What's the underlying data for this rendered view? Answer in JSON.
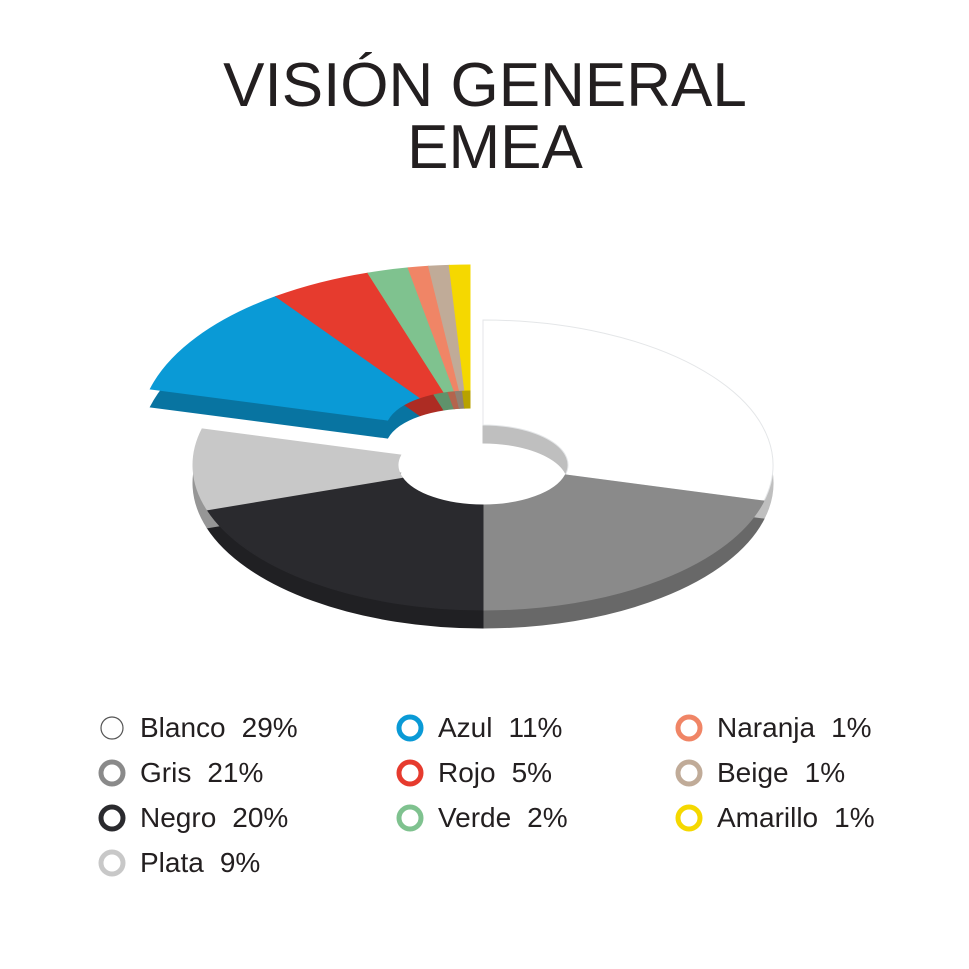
{
  "chart_data": {
    "type": "donut",
    "title": [
      "VISIÓN GENERAL",
      "EMEA"
    ],
    "categories": [
      "Blanco",
      "Gris",
      "Negro",
      "Plata",
      "Azul",
      "Rojo",
      "Verde",
      "Naranja",
      "Beige",
      "Amarillo"
    ],
    "values": [
      29,
      21,
      20,
      9,
      11,
      5,
      2,
      1,
      1,
      1
    ],
    "value_labels": [
      "29%",
      "21%",
      "20%",
      "9%",
      "11%",
      "5%",
      "2%",
      "1%",
      "1%",
      "1%"
    ],
    "colors": [
      "#ffffff",
      "#8a8a8a",
      "#2a2a2e",
      "#c8c8c8",
      "#0a9ad6",
      "#e63b2e",
      "#7fc28f",
      "#f08566",
      "#c0ab98",
      "#f5d800"
    ]
  }
}
